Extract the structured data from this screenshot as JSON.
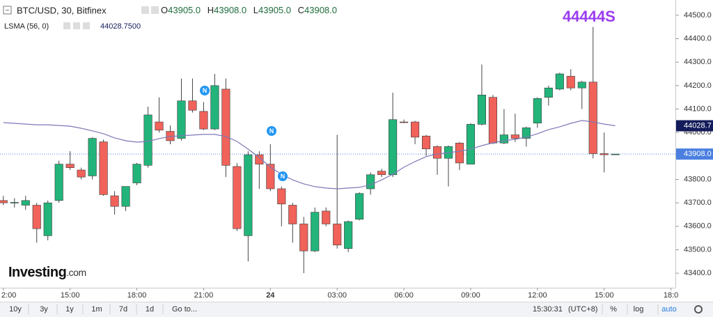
{
  "header": {
    "symbol": "BTC/USD, 30, Bitfinex",
    "ohlc": [
      {
        "key": "O",
        "value": "43905.0"
      },
      {
        "key": "H",
        "value": "43908.0"
      },
      {
        "key": "L",
        "value": "43905.0"
      },
      {
        "key": "C",
        "value": "43908.0"
      }
    ],
    "indicator": "LSMA (56, 0)",
    "indicator_value": "44028.7500",
    "watermark": "44444S"
  },
  "logo": {
    "name": "Investing",
    "suffix": ".com"
  },
  "news_markers": [
    "N",
    "N",
    "N"
  ],
  "toolbar": {
    "ranges": [
      "10y",
      "3y",
      "1y",
      "1m",
      "7d",
      "1d"
    ],
    "goto": "Go to...",
    "time": "15:30:31",
    "timezone": "(UTC+8)",
    "options": [
      "%",
      "log",
      "auto"
    ]
  },
  "chart_data": {
    "type": "candlestick",
    "x": [
      12,
      12.5,
      13,
      13.5,
      14,
      14.5,
      15,
      15.5,
      16,
      16.5,
      17,
      17.5,
      18,
      18.5,
      19,
      19.5,
      20,
      20.5,
      21,
      21.5,
      22,
      22.5,
      23,
      23.5,
      24,
      24.5,
      25,
      25.5,
      26,
      26.5,
      27,
      27.5,
      28,
      28.5,
      29,
      29.5,
      30,
      30.5,
      31,
      31.5,
      32,
      32.5,
      33,
      33.5,
      34,
      34.5,
      35,
      35.5,
      36,
      36.5,
      37,
      37.5,
      38,
      38.5,
      39,
      39.5
    ],
    "open": [
      43710,
      43700,
      43690,
      43690,
      43560,
      43710,
      43865,
      43840,
      43815,
      43960,
      43730,
      43685,
      43785,
      43860,
      44045,
      44005,
      43975,
      44135,
      44090,
      44015,
      44185,
      43855,
      43560,
      43905,
      43865,
      43760,
      43690,
      43610,
      43495,
      43665,
      43610,
      43505,
      43630,
      43760,
      43835,
      43820,
      44045,
      44045,
      43985,
      43940,
      43890,
      43955,
      43865,
      44035,
      44150,
      43955,
      43990,
      43975,
      44040,
      44150,
      44185,
      44240,
      44190,
      44215,
      43910,
      43905
    ],
    "high": [
      43730,
      43720,
      43730,
      43700,
      43710,
      43880,
      43920,
      43850,
      43980,
      43970,
      43750,
      43770,
      43870,
      44110,
      44150,
      44030,
      44230,
      44230,
      44130,
      44250,
      44230,
      43870,
      43920,
      43920,
      43950,
      43770,
      43700,
      43640,
      43680,
      43680,
      43990,
      43625,
      43745,
      43830,
      43845,
      44170,
      44055,
      44050,
      43990,
      43945,
      43945,
      43960,
      44040,
      44290,
      44160,
      44100,
      44080,
      44025,
      44150,
      44200,
      44255,
      44270,
      44220,
      44450,
      44000,
      43908
    ],
    "low": [
      43690,
      43680,
      43670,
      43530,
      43540,
      43700,
      43840,
      43800,
      43800,
      43730,
      43650,
      43665,
      43775,
      43850,
      44000,
      43950,
      43965,
      44085,
      44010,
      44010,
      43810,
      43580,
      43450,
      43760,
      43750,
      43600,
      43530,
      43400,
      43490,
      43600,
      43505,
      43490,
      43625,
      43735,
      43810,
      43810,
      44040,
      43950,
      43900,
      43820,
      43770,
      43840,
      43865,
      44030,
      43950,
      43950,
      43960,
      43940,
      44020,
      44115,
      44180,
      44180,
      44100,
      43890,
      43830,
      43905
    ],
    "close": [
      43700,
      43702,
      43710,
      43590,
      43700,
      43865,
      43850,
      43810,
      43975,
      43735,
      43685,
      43770,
      43865,
      44075,
      44010,
      43965,
      44135,
      44095,
      44015,
      44200,
      43860,
      43590,
      43905,
      43865,
      43760,
      43695,
      43610,
      43495,
      43660,
      43610,
      43520,
      43620,
      43740,
      43820,
      43820,
      44055,
      44042,
      43980,
      43930,
      43890,
      43940,
      43870,
      44035,
      44160,
      43955,
      43990,
      43975,
      44020,
      44145,
      44190,
      44250,
      44190,
      44215,
      43910,
      43905,
      43908
    ],
    "up_color": "#22b47a",
    "down_color": "#f0625a",
    "lines": [
      {
        "name": "LSMA (56, 0)",
        "color": "#7d78b8",
        "values": [
          44042,
          44039,
          44036,
          44033,
          44033,
          44030,
          44027,
          44018,
          44007,
          43995,
          43977,
          43965,
          43959,
          43962,
          43974,
          43983,
          43986,
          43989,
          43992,
          43992,
          43983,
          43962,
          43929,
          43894,
          43852,
          43822,
          43798,
          43781,
          43769,
          43763,
          43760,
          43763,
          43766,
          43777,
          43798,
          43822,
          43852,
          43876,
          43897,
          43908,
          43914,
          43920,
          43929,
          43944,
          43956,
          43965,
          43971,
          43980,
          43995,
          44012,
          44024,
          44039,
          44051,
          44045,
          44036,
          44028.75
        ]
      }
    ],
    "price_labels": [
      {
        "value": 44028.7,
        "color": "#131c5a"
      },
      {
        "value": 43908,
        "label": "43908.0",
        "color": "#4a7fe0"
      }
    ],
    "xlim": [
      11.85,
      42.2
    ],
    "ylim": [
      43338,
      44565
    ],
    "xticks": [
      {
        "value": 12,
        "label": "2:00"
      },
      {
        "value": 15,
        "label": "15:00"
      },
      {
        "value": 18,
        "label": "18:00"
      },
      {
        "value": 21,
        "label": "21:00"
      },
      24,
      {
        "value": 27,
        "label": "03:00"
      },
      {
        "value": 30,
        "label": "06:00"
      },
      {
        "value": 33,
        "label": "09:00"
      },
      {
        "value": 36,
        "label": "12:00"
      },
      {
        "value": 39,
        "label": "15:00"
      },
      {
        "value": 42,
        "label": "18:0"
      }
    ],
    "xtick_bold": 24,
    "yticks": [
      {
        "value": 43400,
        "label": "43400.0"
      },
      {
        "value": 43500,
        "label": "43500.0"
      },
      {
        "value": 43600,
        "label": "43600.0"
      },
      {
        "value": 43700,
        "label": "43700.0"
      },
      {
        "value": 43800,
        "label": "43800.0"
      },
      {
        "value": 43900,
        "label": "43900.0"
      },
      {
        "value": 44000,
        "label": "44000.0"
      },
      {
        "value": 44100,
        "label": "44100.0"
      },
      {
        "value": 44200,
        "label": "44200.0"
      },
      {
        "value": 44300,
        "label": "44300.0"
      },
      {
        "value": 44400,
        "label": "44400.0"
      },
      {
        "value": 44500,
        "label": "44500.0"
      }
    ]
  }
}
